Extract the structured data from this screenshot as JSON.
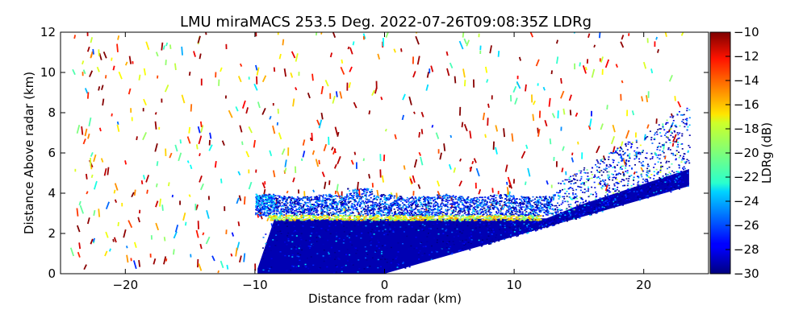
{
  "chart_data": {
    "type": "heatmap",
    "title": "LMU miraMACS 253.5 Deg. 2022-07-26T09:08:35Z  LDRg",
    "xlabel": "Distance from radar (km)",
    "ylabel": "Distance Above radar  (km)",
    "xlim": [
      -25,
      25
    ],
    "ylim": [
      0,
      12
    ],
    "x_ticks": [
      -20,
      -10,
      0,
      10,
      20
    ],
    "y_ticks": [
      0,
      2,
      4,
      6,
      8,
      10,
      12
    ],
    "colorbar": {
      "label": "LDRg (dB)",
      "range": [
        -30,
        -10
      ],
      "ticks": [
        -10,
        -12,
        -14,
        -16,
        -18,
        -20,
        -22,
        -24,
        -26,
        -28,
        -30
      ],
      "colormap": "jet"
    },
    "grid": false,
    "scan_geometry": {
      "elevation_deg": 10.5,
      "max_range_km": 24,
      "radar_position_km": [
        0,
        0
      ]
    },
    "features": [
      {
        "name": "low-level echo",
        "x_range_km": [
          -10,
          23.5
        ],
        "top_km": 2.8,
        "ldr_db": -30
      },
      {
        "name": "melting layer",
        "x_range_km": [
          -9,
          12
        ],
        "height_km": 2.8,
        "ldr_db": -18
      },
      {
        "name": "stratiform layer",
        "x_range_km": [
          -10,
          13
        ],
        "height_range_km": [
          2.9,
          4.0
        ],
        "ldr_db": -28
      },
      {
        "name": "insect / clutter speckle",
        "x_range_km": [
          -24,
          23
        ],
        "height_range_km": [
          0,
          12
        ],
        "ldr_db": -10
      }
    ]
  }
}
